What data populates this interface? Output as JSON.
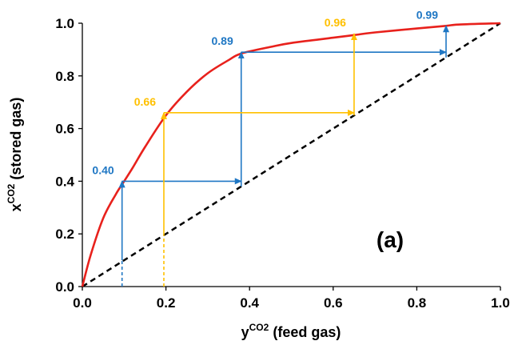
{
  "chart_data": {
    "type": "line",
    "panel_label": "(a)",
    "xlabel_main": "y",
    "xlabel_sup": "CO2",
    "xlabel_rest": " (feed gas)",
    "ylabel_main": "x",
    "ylabel_sup": "CO2",
    "ylabel_rest": " (stored gas)",
    "xlim": [
      0,
      1
    ],
    "ylim": [
      0,
      1
    ],
    "x_ticks": [
      "0.0",
      "0.2",
      "0.4",
      "0.6",
      "0.8",
      "1.0"
    ],
    "y_ticks": [
      "0.0",
      "0.2",
      "0.4",
      "0.6",
      "0.8",
      "1.0"
    ],
    "grid": false,
    "colors": {
      "curve": "#e8211c",
      "diagonal": "#000000",
      "blue": "#1f77c4",
      "yellow": "#ffc000"
    },
    "curve": {
      "x": [
        0,
        0.02,
        0.05,
        0.08,
        0.1,
        0.12,
        0.15,
        0.2,
        0.25,
        0.3,
        0.35,
        0.38,
        0.45,
        0.5,
        0.6,
        0.65,
        0.7,
        0.8,
        0.87,
        0.9,
        1.0
      ],
      "y": [
        0,
        0.12,
        0.26,
        0.35,
        0.4,
        0.45,
        0.53,
        0.65,
        0.74,
        0.81,
        0.86,
        0.885,
        0.91,
        0.925,
        0.945,
        0.955,
        0.965,
        0.98,
        0.99,
        0.995,
        1.0
      ]
    },
    "diagonal": {
      "x": [
        0,
        1
      ],
      "y": [
        0,
        1
      ]
    },
    "annotations": [
      {
        "text": "0.40",
        "x": 0.095,
        "y": 0.4,
        "color": "blue"
      },
      {
        "text": "0.66",
        "x": 0.195,
        "y": 0.66,
        "color": "yellow"
      },
      {
        "text": "0.89",
        "x": 0.38,
        "y": 0.89,
        "color": "blue"
      },
      {
        "text": "0.96",
        "x": 0.65,
        "y": 0.96,
        "color": "yellow"
      },
      {
        "text": "0.99",
        "x": 0.87,
        "y": 0.99,
        "color": "blue"
      }
    ],
    "steps": [
      {
        "color": "blue",
        "x": 0.095,
        "y_from": 0,
        "y_to": 0.4,
        "dashed_below": 0.1
      },
      {
        "color": "blue",
        "horizontal": true,
        "x_from": 0.095,
        "x_to": 0.38,
        "y": 0.4
      },
      {
        "color": "blue",
        "x": 0.38,
        "y_from": 0.38,
        "y_to": 0.89
      },
      {
        "color": "blue",
        "horizontal": true,
        "x_from": 0.38,
        "x_to": 0.87,
        "y": 0.89
      },
      {
        "color": "blue",
        "x": 0.87,
        "y_from": 0.87,
        "y_to": 0.99
      },
      {
        "color": "yellow",
        "x": 0.195,
        "y_from": 0,
        "y_to": 0.66,
        "dashed_below": 0.2
      },
      {
        "color": "yellow",
        "horizontal": true,
        "x_from": 0.195,
        "x_to": 0.65,
        "y": 0.66
      },
      {
        "color": "yellow",
        "x": 0.65,
        "y_from": 0.65,
        "y_to": 0.96
      }
    ]
  }
}
